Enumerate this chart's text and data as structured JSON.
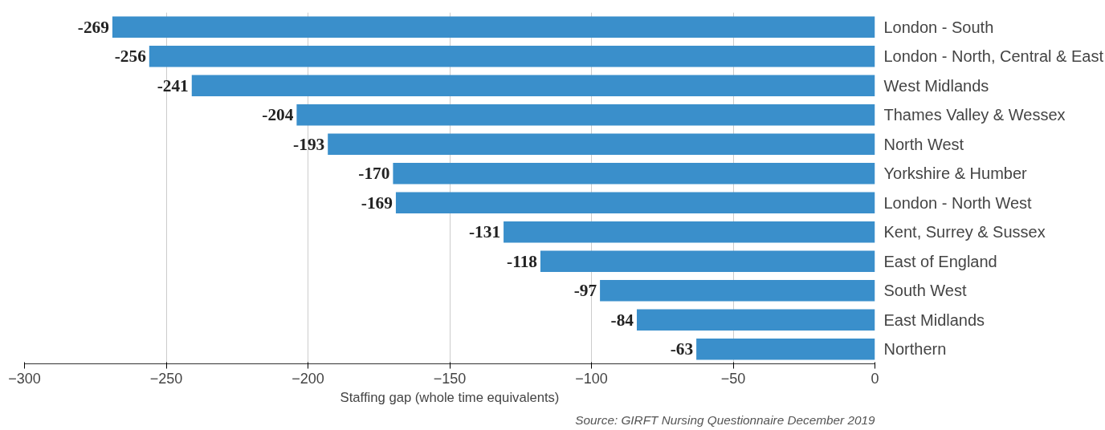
{
  "chart_data": {
    "type": "bar",
    "orientation": "horizontal",
    "categories": [
      "London - South",
      "London - North, Central & East",
      "West Midlands",
      "Thames Valley & Wessex",
      "North West",
      "Yorkshire & Humber",
      "London - North West",
      "Kent, Surrey & Sussex",
      "East of England",
      "South West",
      "East Midlands",
      "Northern"
    ],
    "values": [
      -269,
      -256,
      -241,
      -204,
      -193,
      -170,
      -169,
      -131,
      -118,
      -97,
      -84,
      -63
    ],
    "color": "#3a8fcb",
    "xlim": [
      -300,
      0
    ],
    "xticks": [
      -300,
      -250,
      -200,
      -150,
      -100,
      -50,
      0
    ],
    "xlabel": "Staffing gap (whole time equivalents)",
    "annotations": [
      "Source: GIRFT Nursing Questionnaire December 2019"
    ],
    "data_labels": true,
    "grid": "x"
  }
}
